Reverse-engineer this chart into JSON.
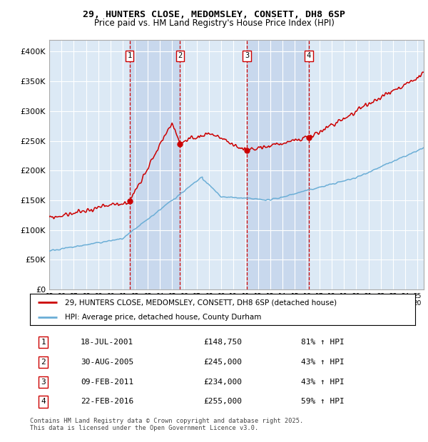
{
  "title": "29, HUNTERS CLOSE, MEDOMSLEY, CONSETT, DH8 6SP",
  "subtitle": "Price paid vs. HM Land Registry's House Price Index (HPI)",
  "legend_line1": "29, HUNTERS CLOSE, MEDOMSLEY, CONSETT, DH8 6SP (detached house)",
  "legend_line2": "HPI: Average price, detached house, County Durham",
  "footer": "Contains HM Land Registry data © Crown copyright and database right 2025.\nThis data is licensed under the Open Government Licence v3.0.",
  "transactions": [
    {
      "num": 1,
      "date": "18-JUL-2001",
      "price": 148750,
      "pct": "81%",
      "dir": "↑"
    },
    {
      "num": 2,
      "date": "30-AUG-2005",
      "price": 245000,
      "pct": "43%",
      "dir": "↑"
    },
    {
      "num": 3,
      "date": "09-FEB-2011",
      "price": 234000,
      "pct": "43%",
      "dir": "↑"
    },
    {
      "num": 4,
      "date": "22-FEB-2016",
      "price": 255000,
      "pct": "59%",
      "dir": "↑"
    }
  ],
  "transaction_years": [
    2001.54,
    2005.66,
    2011.1,
    2016.14
  ],
  "transaction_prices": [
    148750,
    245000,
    234000,
    255000
  ],
  "hpi_color": "#6baed6",
  "price_color": "#cc0000",
  "vline_color": "#cc0000",
  "shade_color": "#c8d8ed",
  "background_color": "#dce9f5",
  "ylim": [
    0,
    420000
  ],
  "yticks": [
    0,
    50000,
    100000,
    150000,
    200000,
    250000,
    300000,
    350000,
    400000
  ],
  "xlim_start": 1995,
  "xlim_end": 2025.5
}
